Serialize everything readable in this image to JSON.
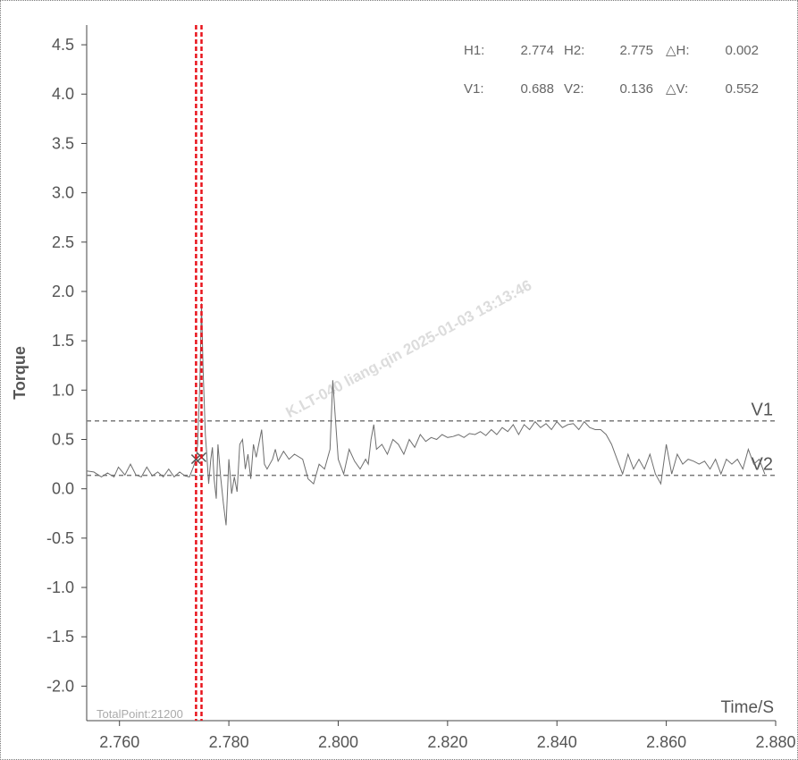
{
  "chart_data": {
    "type": "line",
    "xlabel": "Time/S",
    "ylabel": "Torque",
    "xlim": [
      2.754,
      2.88
    ],
    "ylim": [
      -2.35,
      4.7
    ],
    "xticks": [
      "2.760",
      "2.780",
      "2.800",
      "2.820",
      "2.840",
      "2.860",
      "2.880"
    ],
    "xtick_values": [
      2.76,
      2.78,
      2.8,
      2.82,
      2.84,
      2.86,
      2.88
    ],
    "yticks": [
      "4.5",
      "4.0",
      "3.5",
      "3.0",
      "2.5",
      "2.0",
      "1.5",
      "1.0",
      "0.5",
      "0.0",
      "-0.5",
      "-1.0",
      "-1.5",
      "-2.0"
    ],
    "ytick_values": [
      4.5,
      4.0,
      3.5,
      3.0,
      2.5,
      2.0,
      1.5,
      1.0,
      0.5,
      0.0,
      -0.5,
      -1.0,
      -1.5,
      -2.0
    ],
    "grid": false,
    "series": [
      {
        "color": "#6e6e6e",
        "x": [
          2.754,
          2.7553,
          2.7567,
          2.7578,
          2.759,
          2.7598,
          2.761,
          2.762,
          2.763,
          2.764,
          2.765,
          2.766,
          2.767,
          2.768,
          2.769,
          2.77,
          2.771,
          2.772,
          2.7728,
          2.7735,
          2.774,
          2.7743,
          2.7747,
          2.775,
          2.7753,
          2.7757,
          2.776,
          2.7763,
          2.7767,
          2.777,
          2.7773,
          2.7777,
          2.778,
          2.7785,
          2.779,
          2.7795,
          2.78,
          2.7805,
          2.781,
          2.7815,
          2.782,
          2.7825,
          2.783,
          2.7835,
          2.784,
          2.7845,
          2.785,
          2.786,
          2.7865,
          2.787,
          2.788,
          2.7885,
          2.789,
          2.79,
          2.791,
          2.792,
          2.7935,
          2.7945,
          2.7955,
          2.7965,
          2.7975,
          2.798,
          2.7985,
          2.799,
          2.7995,
          2.8,
          2.801,
          2.802,
          2.803,
          2.804,
          2.805,
          2.8055,
          2.806,
          2.8065,
          2.807,
          2.808,
          2.809,
          2.81,
          2.811,
          2.812,
          2.813,
          2.814,
          2.815,
          2.816,
          2.817,
          2.818,
          2.819,
          2.82,
          2.821,
          2.822,
          2.823,
          2.824,
          2.825,
          2.826,
          2.827,
          2.828,
          2.829,
          2.83,
          2.831,
          2.832,
          2.833,
          2.834,
          2.835,
          2.836,
          2.837,
          2.838,
          2.839,
          2.84,
          2.841,
          2.842,
          2.843,
          2.844,
          2.845,
          2.846,
          2.847,
          2.848,
          2.849,
          2.85,
          2.851,
          2.852,
          2.853,
          2.854,
          2.855,
          2.856,
          2.857,
          2.858,
          2.859,
          2.86,
          2.861,
          2.862,
          2.863,
          2.864,
          2.865,
          2.866,
          2.867,
          2.868,
          2.869,
          2.87,
          2.871,
          2.872,
          2.873,
          2.874,
          2.875,
          2.876,
          2.877,
          2.878
        ],
        "values": [
          0.18,
          0.17,
          0.12,
          0.16,
          0.12,
          0.22,
          0.14,
          0.25,
          0.14,
          0.12,
          0.22,
          0.13,
          0.17,
          0.12,
          0.2,
          0.12,
          0.17,
          0.13,
          0.12,
          0.22,
          0.3,
          0.45,
          1.1,
          1.88,
          1.2,
          0.55,
          0.32,
          0.05,
          0.3,
          0.42,
          0.1,
          -0.1,
          0.45,
          0.12,
          -0.15,
          -0.37,
          0.3,
          -0.05,
          0.12,
          -0.03,
          0.45,
          0.5,
          0.2,
          0.35,
          0.1,
          0.45,
          0.32,
          0.6,
          0.25,
          0.2,
          0.3,
          0.4,
          0.28,
          0.38,
          0.3,
          0.35,
          0.3,
          0.1,
          0.05,
          0.25,
          0.2,
          0.3,
          0.4,
          1.1,
          0.7,
          0.3,
          0.15,
          0.4,
          0.28,
          0.2,
          0.3,
          0.25,
          0.5,
          0.65,
          0.4,
          0.45,
          0.35,
          0.5,
          0.45,
          0.35,
          0.5,
          0.42,
          0.55,
          0.48,
          0.52,
          0.5,
          0.55,
          0.52,
          0.53,
          0.55,
          0.52,
          0.56,
          0.55,
          0.58,
          0.54,
          0.6,
          0.55,
          0.62,
          0.58,
          0.65,
          0.55,
          0.65,
          0.6,
          0.68,
          0.62,
          0.66,
          0.6,
          0.68,
          0.62,
          0.65,
          0.66,
          0.6,
          0.68,
          0.62,
          0.6,
          0.6,
          0.55,
          0.45,
          0.3,
          0.15,
          0.35,
          0.2,
          0.3,
          0.2,
          0.35,
          0.15,
          0.05,
          0.45,
          0.15,
          0.35,
          0.25,
          0.3,
          0.28,
          0.25,
          0.28,
          0.2,
          0.3,
          0.15,
          0.3,
          0.25,
          0.3,
          0.2,
          0.4,
          0.25,
          0.3,
          0.15
        ]
      }
    ],
    "cursors": {
      "h1": 2.774,
      "h2": 2.775,
      "dh": 0.002,
      "v1": 0.688,
      "v2": 0.136,
      "dv": 0.552,
      "cursor_color": "#e8141c",
      "ref_line_color": "#7a7a7a"
    }
  },
  "readout": {
    "h1_label": "H1:",
    "h1_value": "2.774",
    "h2_label": "H2:",
    "h2_value": "2.775",
    "dh_label": "△H:",
    "dh_value": "0.002",
    "v1_label": "V1:",
    "v1_value": "0.688",
    "v2_label": "V2:",
    "v2_value": "0.136",
    "dv_label": "△V:",
    "dv_value": "0.552"
  },
  "ref_labels": {
    "v1": "V1",
    "v2": "V2"
  },
  "footer": {
    "total_points": "TotalPoint:21200"
  },
  "watermark": "K.LT-040 liang.qin 2025-01-03 13:13:46"
}
